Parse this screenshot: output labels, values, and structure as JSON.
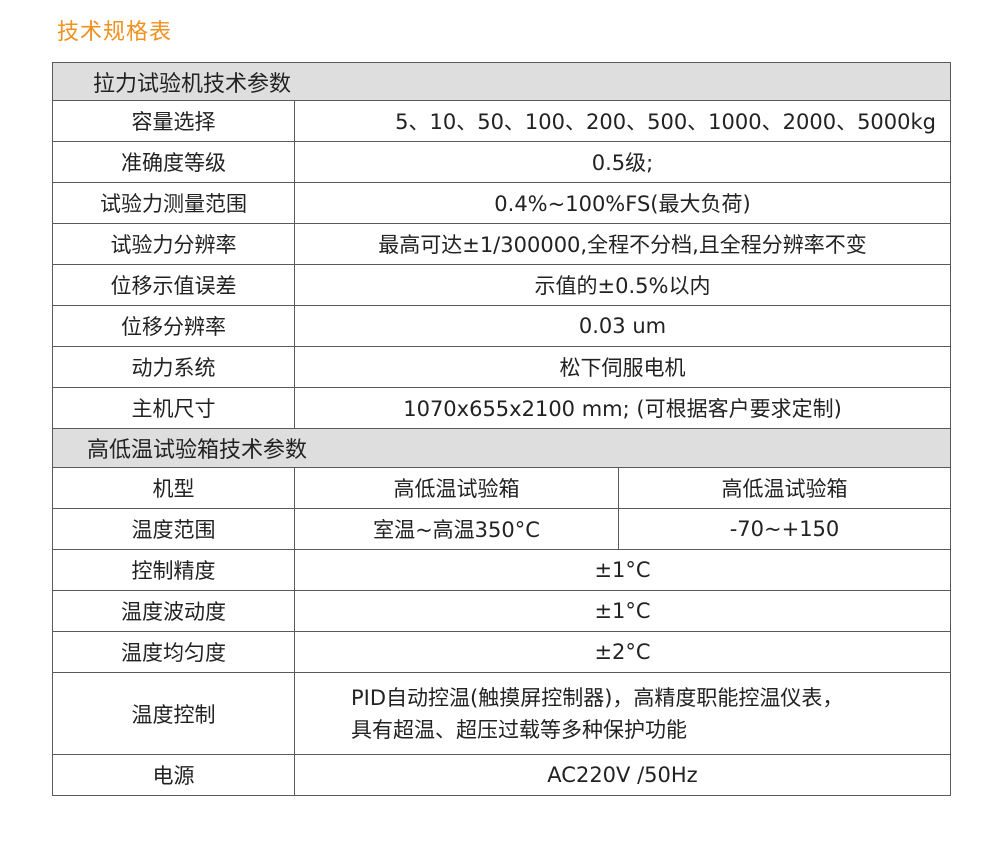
{
  "title": "技术规格表",
  "tensile": {
    "header": "拉力试验机技术参数",
    "rows": [
      {
        "label": "容量选择",
        "value": "5、10、50、100、200、500、1000、2000、5000kg"
      },
      {
        "label": "准确度等级",
        "value": "0.5级;"
      },
      {
        "label": "试验力测量范围",
        "value": "0.4%~100%FS(最大负荷)"
      },
      {
        "label": "试验力分辨率",
        "value": "最高可达±1/300000,全程不分档,且全程分辨率不变"
      },
      {
        "label": "位移示值误差",
        "value": "示值的±0.5%以内"
      },
      {
        "label": "位移分辨率",
        "value": "0.03 um"
      },
      {
        "label": "动力系统",
        "value": "松下伺服电机"
      },
      {
        "label": "主机尺寸",
        "value": "1070x655x2100 mm; (可根据客户要求定制)"
      }
    ]
  },
  "chamber": {
    "header": "高低温试验箱技术参数",
    "model": {
      "label": "机型",
      "values": [
        "高低温试验箱",
        "高低温试验箱"
      ]
    },
    "temp_range": {
      "label": "温度范围",
      "values": [
        "室温~高温350°C",
        "-70~+150"
      ]
    },
    "rows": [
      {
        "label": "控制精度",
        "value": "±1°C"
      },
      {
        "label": "温度波动度",
        "value": "±1°C"
      },
      {
        "label": "温度均匀度",
        "value": "±2°C"
      }
    ],
    "control": {
      "label": "温度控制",
      "line1": "PID自动控温(触摸屏控制器)，高精度职能控温仪表，",
      "line2": "具有超温、超压过载等多种保护功能"
    },
    "power": {
      "label": "电源",
      "value": "AC220V /50Hz"
    }
  }
}
